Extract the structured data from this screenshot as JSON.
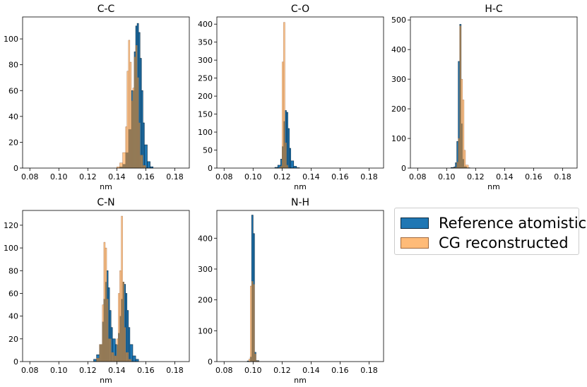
{
  "colors": {
    "reference": "#1f77b4",
    "reference_edge": "#0b2a40",
    "cg": "#ffbb78",
    "cg_edge": "#a06a40",
    "overlap": "#8c7553"
  },
  "legend": {
    "placement": "right",
    "reference_label": "Reference atomistic",
    "cg_label": "CG reconstructed"
  },
  "chart_data": [
    {
      "type": "histogram",
      "title": "C-C",
      "xlabel": "nm",
      "ylabel": "",
      "xlim": [
        0.075,
        0.19
      ],
      "ylim": [
        0,
        117
      ],
      "xticks": [
        "0.08",
        "0.10",
        "0.12",
        "0.14",
        "0.16",
        "0.18"
      ],
      "yticks": [
        "0",
        "20",
        "40",
        "60",
        "80",
        "100"
      ],
      "series": [
        {
          "name": "Reference atomistic",
          "series_key": "reference",
          "bins": [
            [
              0.142,
              0.144,
              1
            ],
            [
              0.144,
              0.146,
              3
            ],
            [
              0.146,
              0.148,
              12
            ],
            [
              0.148,
              0.15,
              30
            ],
            [
              0.15,
              0.152,
              60
            ],
            [
              0.152,
              0.153,
              90
            ],
            [
              0.153,
              0.154,
              110
            ],
            [
              0.154,
              0.155,
              112
            ],
            [
              0.155,
              0.156,
              105
            ],
            [
              0.156,
              0.157,
              85
            ],
            [
              0.157,
              0.158,
              60
            ],
            [
              0.158,
              0.159,
              35
            ],
            [
              0.159,
              0.161,
              18
            ],
            [
              0.161,
              0.163,
              5
            ],
            [
              0.163,
              0.165,
              1
            ]
          ]
        },
        {
          "name": "CG reconstructed",
          "series_key": "cg",
          "bins": [
            [
              0.14,
              0.142,
              1
            ],
            [
              0.142,
              0.144,
              4
            ],
            [
              0.144,
              0.146,
              12
            ],
            [
              0.146,
              0.147,
              32
            ],
            [
              0.147,
              0.148,
              75
            ],
            [
              0.148,
              0.149,
              99
            ],
            [
              0.149,
              0.15,
              82
            ],
            [
              0.15,
              0.151,
              52
            ],
            [
              0.151,
              0.152,
              62
            ],
            [
              0.152,
              0.153,
              86
            ],
            [
              0.153,
              0.154,
              95
            ],
            [
              0.154,
              0.155,
              70
            ],
            [
              0.155,
              0.156,
              35
            ],
            [
              0.156,
              0.158,
              10
            ],
            [
              0.158,
              0.16,
              2
            ]
          ]
        }
      ]
    },
    {
      "type": "histogram",
      "title": "C-O",
      "xlabel": "nm",
      "ylabel": "",
      "xlim": [
        0.075,
        0.19
      ],
      "ylim": [
        0,
        420
      ],
      "xticks": [
        "0.08",
        "0.10",
        "0.12",
        "0.14",
        "0.16",
        "0.18"
      ],
      "yticks": [
        "0",
        "50",
        "100",
        "150",
        "200",
        "250",
        "300",
        "350",
        "400"
      ],
      "series": [
        {
          "name": "Reference atomistic",
          "series_key": "reference",
          "bins": [
            [
              0.115,
              0.117,
              2
            ],
            [
              0.117,
              0.119,
              8
            ],
            [
              0.119,
              0.12,
              25
            ],
            [
              0.12,
              0.121,
              60
            ],
            [
              0.121,
              0.122,
              130
            ],
            [
              0.122,
              0.123,
              160
            ],
            [
              0.123,
              0.124,
              155
            ],
            [
              0.124,
              0.125,
              110
            ],
            [
              0.125,
              0.126,
              55
            ],
            [
              0.126,
              0.128,
              20
            ],
            [
              0.128,
              0.13,
              5
            ],
            [
              0.13,
              0.132,
              1
            ]
          ]
        },
        {
          "name": "CG reconstructed",
          "series_key": "cg",
          "bins": [
            [
              0.118,
              0.119,
              2
            ],
            [
              0.119,
              0.12,
              5
            ],
            [
              0.12,
              0.121,
              295
            ],
            [
              0.121,
              0.122,
              405
            ],
            [
              0.122,
              0.123,
              70
            ],
            [
              0.123,
              0.124,
              8
            ],
            [
              0.124,
              0.125,
              1
            ]
          ]
        }
      ]
    },
    {
      "type": "histogram",
      "title": "H-C",
      "xlabel": "nm",
      "ylabel": "",
      "xlim": [
        0.075,
        0.19
      ],
      "ylim": [
        0,
        510
      ],
      "xticks": [
        "0.08",
        "0.10",
        "0.12",
        "0.14",
        "0.16",
        "0.18"
      ],
      "yticks": [
        "0",
        "100",
        "200",
        "300",
        "400",
        "500"
      ],
      "series": [
        {
          "name": "Reference atomistic",
          "series_key": "reference",
          "bins": [
            [
              0.103,
              0.105,
              2
            ],
            [
              0.105,
              0.106,
              4
            ],
            [
              0.106,
              0.107,
              18
            ],
            [
              0.107,
              0.108,
              90
            ],
            [
              0.108,
              0.109,
              360
            ],
            [
              0.109,
              0.11,
              485
            ],
            [
              0.11,
              0.111,
              150
            ],
            [
              0.111,
              0.112,
              30
            ],
            [
              0.112,
              0.114,
              5
            ],
            [
              0.114,
              0.116,
              1
            ]
          ]
        },
        {
          "name": "CG reconstructed",
          "series_key": "cg",
          "bins": [
            [
              0.105,
              0.107,
              2
            ],
            [
              0.107,
              0.108,
              20
            ],
            [
              0.108,
              0.109,
              100
            ],
            [
              0.109,
              0.11,
              480
            ],
            [
              0.11,
              0.111,
              300
            ],
            [
              0.111,
              0.112,
              230
            ],
            [
              0.112,
              0.113,
              60
            ],
            [
              0.113,
              0.115,
              10
            ]
          ]
        }
      ]
    },
    {
      "type": "histogram",
      "title": "C-N",
      "xlabel": "nm",
      "ylabel": "",
      "xlim": [
        0.075,
        0.19
      ],
      "ylim": [
        0,
        133
      ],
      "xticks": [
        "0.08",
        "0.10",
        "0.12",
        "0.14",
        "0.16",
        "0.18"
      ],
      "yticks": [
        "0",
        "20",
        "40",
        "60",
        "80",
        "100",
        "120"
      ],
      "series": [
        {
          "name": "Reference atomistic",
          "series_key": "reference",
          "bins": [
            [
              0.124,
              0.126,
              2
            ],
            [
              0.126,
              0.128,
              6
            ],
            [
              0.128,
              0.13,
              15
            ],
            [
              0.13,
              0.131,
              35
            ],
            [
              0.131,
              0.132,
              55
            ],
            [
              0.132,
              0.133,
              70
            ],
            [
              0.133,
              0.134,
              80
            ],
            [
              0.134,
              0.135,
              65
            ],
            [
              0.135,
              0.136,
              45
            ],
            [
              0.136,
              0.137,
              30
            ],
            [
              0.137,
              0.139,
              20
            ],
            [
              0.139,
              0.141,
              15
            ],
            [
              0.141,
              0.142,
              25
            ],
            [
              0.142,
              0.143,
              40
            ],
            [
              0.143,
              0.144,
              55
            ],
            [
              0.144,
              0.145,
              70
            ],
            [
              0.145,
              0.146,
              68
            ],
            [
              0.146,
              0.147,
              60
            ],
            [
              0.147,
              0.148,
              45
            ],
            [
              0.148,
              0.149,
              30
            ],
            [
              0.149,
              0.151,
              15
            ],
            [
              0.151,
              0.153,
              5
            ],
            [
              0.153,
              0.155,
              2
            ]
          ]
        },
        {
          "name": "CG reconstructed",
          "series_key": "cg",
          "bins": [
            [
              0.126,
              0.128,
              3
            ],
            [
              0.128,
              0.13,
              15
            ],
            [
              0.13,
              0.131,
              50
            ],
            [
              0.131,
              0.132,
              105
            ],
            [
              0.132,
              0.133,
              100
            ],
            [
              0.133,
              0.134,
              55
            ],
            [
              0.134,
              0.136,
              20
            ],
            [
              0.136,
              0.138,
              8
            ],
            [
              0.138,
              0.14,
              5
            ],
            [
              0.14,
              0.141,
              20
            ],
            [
              0.141,
              0.142,
              60
            ],
            [
              0.142,
              0.143,
              80
            ],
            [
              0.143,
              0.144,
              128
            ],
            [
              0.144,
              0.145,
              70
            ],
            [
              0.145,
              0.146,
              30
            ],
            [
              0.146,
              0.148,
              8
            ],
            [
              0.148,
              0.15,
              2
            ]
          ]
        }
      ]
    },
    {
      "type": "histogram",
      "title": "N-H",
      "xlabel": "nm",
      "ylabel": "",
      "xlim": [
        0.075,
        0.19
      ],
      "ylim": [
        0,
        490
      ],
      "xticks": [
        "0.08",
        "0.10",
        "0.12",
        "0.14",
        "0.16",
        "0.18"
      ],
      "yticks": [
        "0",
        "100",
        "200",
        "300",
        "400"
      ],
      "series": [
        {
          "name": "Reference atomistic",
          "series_key": "reference",
          "bins": [
            [
              0.096,
              0.098,
              2
            ],
            [
              0.098,
              0.099,
              15
            ],
            [
              0.099,
              0.1,
              475
            ],
            [
              0.1,
              0.101,
              415
            ],
            [
              0.101,
              0.102,
              30
            ],
            [
              0.102,
              0.104,
              3
            ]
          ]
        },
        {
          "name": "CG reconstructed",
          "series_key": "cg",
          "bins": [
            [
              0.097,
              0.098,
              8
            ],
            [
              0.098,
              0.099,
              245
            ],
            [
              0.099,
              0.1,
              260
            ],
            [
              0.1,
              0.101,
              250
            ],
            [
              0.101,
              0.102,
              25
            ],
            [
              0.102,
              0.104,
              2
            ]
          ]
        }
      ]
    }
  ]
}
